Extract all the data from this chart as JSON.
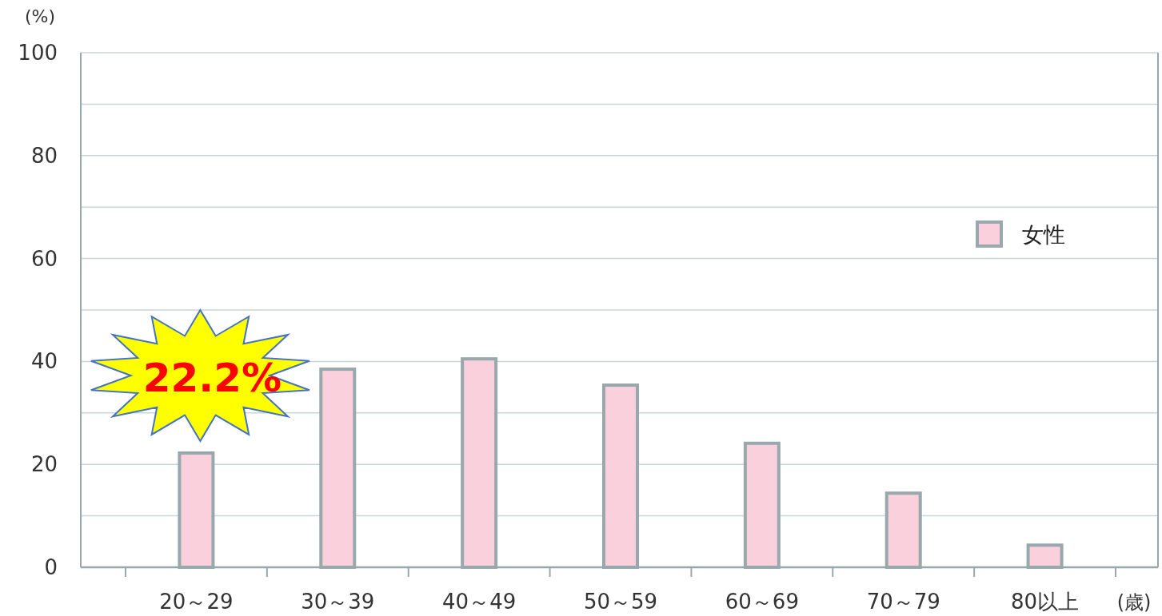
{
  "chart_data": {
    "type": "bar",
    "ylabel": "(%)",
    "xlabel": "(歳)",
    "categories": [
      "20～29",
      "30～39",
      "40～49",
      "50～59",
      "60～69",
      "70～79",
      "80以上"
    ],
    "series": [
      {
        "name": "女性",
        "color": "#f9d0dc",
        "values": [
          22.2,
          38.5,
          40.5,
          35.4,
          24.1,
          14.4,
          4.3
        ]
      }
    ],
    "ylim": [
      0,
      100
    ],
    "yticks": [
      0,
      {
        "value": 10,
        "label": null
      },
      20,
      {
        "value": 30,
        "label": null
      },
      40,
      {
        "value": 50,
        "label": null
      },
      60,
      {
        "value": 70,
        "label": null
      },
      80,
      {
        "value": 90,
        "label": null
      },
      100
    ],
    "grid": "y",
    "legend": "right",
    "annotations": [
      {
        "text": "22.2%",
        "x": "20～29",
        "y": 22.2
      }
    ]
  }
}
